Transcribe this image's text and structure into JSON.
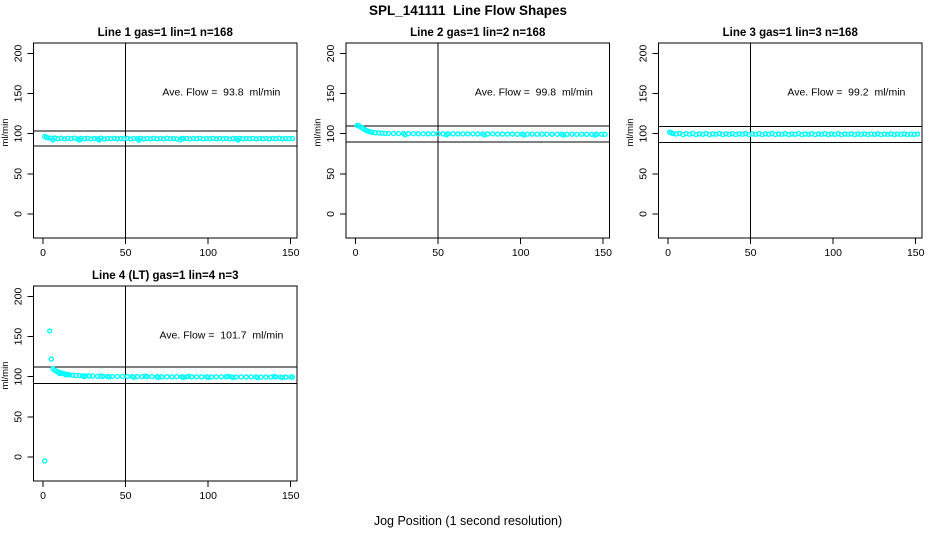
{
  "page": {
    "title": "SPL_141111  Line Flow Shapes",
    "xlabel": "Jog Position (1 second resolution)"
  },
  "colors": {
    "marker": "#00ffff",
    "axis": "#000000",
    "text": "#000000",
    "background": "#ffffff"
  },
  "chart_data": [
    {
      "type": "scatter",
      "title": "Line 1 gas=1 lin=1 n=168",
      "annotation": "Ave. Flow =  93.8  ml/min",
      "ave_flow_ml_min": 93.8,
      "ylabel": "ml/min",
      "xticks": [
        0,
        50,
        100,
        150
      ],
      "yticks": [
        0,
        50,
        100,
        150,
        200
      ],
      "xlim": [
        -5.8,
        153.8
      ],
      "ylim": [
        -30,
        213
      ],
      "vline": 50,
      "hlines": [
        103.2,
        84.4
      ],
      "annotation_pos": [
        108,
        152
      ],
      "points": [
        [
          1,
          96.5
        ],
        [
          2,
          95.6
        ],
        [
          3,
          94.9
        ],
        [
          5,
          94.3
        ],
        [
          6,
          92.3
        ],
        [
          7,
          94.6
        ],
        [
          9,
          93.8
        ],
        [
          11,
          94.4
        ],
        [
          13,
          93.6
        ],
        [
          15,
          94.2
        ],
        [
          17,
          93.9
        ],
        [
          19,
          94.5
        ],
        [
          21,
          93.4
        ],
        [
          22,
          92.1
        ],
        [
          23,
          94.1
        ],
        [
          25,
          93.7
        ],
        [
          27,
          94.3
        ],
        [
          29,
          93.5
        ],
        [
          31,
          94.0
        ],
        [
          33,
          93.8
        ],
        [
          34,
          92.3
        ],
        [
          35,
          94.4
        ],
        [
          37,
          93.3
        ],
        [
          39,
          94.1
        ],
        [
          41,
          93.7
        ],
        [
          43,
          94.2
        ],
        [
          45,
          93.6
        ],
        [
          47,
          94.0
        ],
        [
          49,
          93.8
        ],
        [
          51,
          94.3
        ],
        [
          53,
          93.5
        ],
        [
          55,
          94.1
        ],
        [
          57,
          93.7
        ],
        [
          58,
          92.1
        ],
        [
          59,
          94.2
        ],
        [
          61,
          93.4
        ],
        [
          63,
          94.0
        ],
        [
          65,
          93.8
        ],
        [
          67,
          94.3
        ],
        [
          69,
          93.6
        ],
        [
          71,
          94.1
        ],
        [
          73,
          93.5
        ],
        [
          75,
          94.2
        ],
        [
          77,
          93.8
        ],
        [
          79,
          94.0
        ],
        [
          81,
          93.5
        ],
        [
          83,
          92.2
        ],
        [
          84,
          94.2
        ],
        [
          85,
          93.7
        ],
        [
          87,
          94.1
        ],
        [
          89,
          93.5
        ],
        [
          91,
          94.0
        ],
        [
          93,
          93.8
        ],
        [
          95,
          94.2
        ],
        [
          97,
          93.5
        ],
        [
          99,
          94.0
        ],
        [
          101,
          93.7
        ],
        [
          103,
          94.2
        ],
        [
          105,
          93.6
        ],
        [
          107,
          94.0
        ],
        [
          109,
          93.8
        ],
        [
          111,
          94.1
        ],
        [
          113,
          93.5
        ],
        [
          115,
          94.0
        ],
        [
          117,
          93.7
        ],
        [
          118,
          92.1
        ],
        [
          119,
          94.2
        ],
        [
          121,
          93.6
        ],
        [
          123,
          94.0
        ],
        [
          125,
          93.8
        ],
        [
          127,
          94.1
        ],
        [
          129,
          93.5
        ],
        [
          131,
          94.0
        ],
        [
          133,
          93.7
        ],
        [
          135,
          94.1
        ],
        [
          137,
          93.6
        ],
        [
          139,
          94.0
        ],
        [
          141,
          93.8
        ],
        [
          143,
          94.2
        ],
        [
          145,
          93.6
        ],
        [
          147,
          94.0
        ],
        [
          149,
          93.8
        ],
        [
          151,
          94.0
        ]
      ]
    },
    {
      "type": "scatter",
      "title": "Line 2 gas=1 lin=2 n=168",
      "annotation": "Ave. Flow =  99.8  ml/min",
      "ave_flow_ml_min": 99.8,
      "ylabel": "ml/min",
      "xticks": [
        0,
        50,
        100,
        150
      ],
      "yticks": [
        0,
        50,
        100,
        150,
        200
      ],
      "xlim": [
        -5.8,
        153.8
      ],
      "ylim": [
        -30,
        213
      ],
      "vline": 50,
      "hlines": [
        109.8,
        89.8
      ],
      "annotation_pos": [
        108,
        152
      ],
      "points": [
        [
          1,
          110.3
        ],
        [
          2,
          109.8
        ],
        [
          3,
          108.6
        ],
        [
          4,
          107.2
        ],
        [
          5,
          105.8
        ],
        [
          6,
          104.6
        ],
        [
          7,
          103.6
        ],
        [
          8,
          102.8
        ],
        [
          9,
          102.2
        ],
        [
          10,
          101.7
        ],
        [
          12,
          101.2
        ],
        [
          14,
          100.8
        ],
        [
          16,
          100.6
        ],
        [
          18,
          100.4
        ],
        [
          20,
          100.3
        ],
        [
          23,
          100.2
        ],
        [
          26,
          100.1
        ],
        [
          29,
          100.2
        ],
        [
          30,
          98.6
        ],
        [
          32,
          100.0
        ],
        [
          35,
          100.1
        ],
        [
          38,
          99.9
        ],
        [
          41,
          100.0
        ],
        [
          44,
          99.9
        ],
        [
          47,
          100.0
        ],
        [
          50,
          99.8
        ],
        [
          53,
          99.9
        ],
        [
          55,
          98.5
        ],
        [
          56,
          99.8
        ],
        [
          59,
          99.9
        ],
        [
          62,
          99.7
        ],
        [
          65,
          99.8
        ],
        [
          68,
          99.7
        ],
        [
          71,
          99.8
        ],
        [
          74,
          99.6
        ],
        [
          77,
          99.7
        ],
        [
          78,
          98.4
        ],
        [
          80,
          99.6
        ],
        [
          83,
          99.7
        ],
        [
          86,
          99.5
        ],
        [
          89,
          99.6
        ],
        [
          92,
          99.5
        ],
        [
          95,
          99.6
        ],
        [
          98,
          99.4
        ],
        [
          101,
          99.5
        ],
        [
          102,
          98.3
        ],
        [
          104,
          99.4
        ],
        [
          107,
          99.5
        ],
        [
          110,
          99.3
        ],
        [
          113,
          99.4
        ],
        [
          116,
          99.3
        ],
        [
          119,
          99.4
        ],
        [
          122,
          99.3
        ],
        [
          125,
          99.3
        ],
        [
          126,
          98.2
        ],
        [
          128,
          99.2
        ],
        [
          131,
          99.3
        ],
        [
          134,
          99.2
        ],
        [
          137,
          99.3
        ],
        [
          140,
          99.2
        ],
        [
          143,
          99.2
        ],
        [
          145,
          98.2
        ],
        [
          146,
          99.3
        ],
        [
          149,
          99.2
        ],
        [
          151,
          99.2
        ]
      ]
    },
    {
      "type": "scatter",
      "title": "Line 3 gas=1 lin=3 n=168",
      "annotation": "Ave. Flow =  99.2  ml/min",
      "ave_flow_ml_min": 99.2,
      "ylabel": "ml/min",
      "xticks": [
        0,
        50,
        100,
        150
      ],
      "yticks": [
        0,
        50,
        100,
        150,
        200
      ],
      "xlim": [
        -5.8,
        153.8
      ],
      "ylim": [
        -30,
        213
      ],
      "vline": 50,
      "hlines": [
        109.1,
        89.3
      ],
      "annotation_pos": [
        108,
        152
      ],
      "points": [
        [
          1,
          101.8
        ],
        [
          2,
          100.9
        ],
        [
          3,
          100.2
        ],
        [
          5,
          99.6
        ],
        [
          7,
          100.3
        ],
        [
          9,
          98.9
        ],
        [
          11,
          100.1
        ],
        [
          13,
          99.3
        ],
        [
          15,
          100.4
        ],
        [
          17,
          98.8
        ],
        [
          19,
          99.9
        ],
        [
          21,
          99.2
        ],
        [
          23,
          100.2
        ],
        [
          25,
          98.9
        ],
        [
          27,
          99.8
        ],
        [
          29,
          99.3
        ],
        [
          31,
          100.3
        ],
        [
          33,
          98.8
        ],
        [
          35,
          99.7
        ],
        [
          37,
          99.2
        ],
        [
          39,
          100.1
        ],
        [
          41,
          98.9
        ],
        [
          43,
          99.8
        ],
        [
          45,
          99.3
        ],
        [
          47,
          100.2
        ],
        [
          49,
          98.8
        ],
        [
          51,
          99.7
        ],
        [
          53,
          99.2
        ],
        [
          55,
          100.1
        ],
        [
          57,
          98.9
        ],
        [
          59,
          99.8
        ],
        [
          61,
          99.3
        ],
        [
          63,
          100.2
        ],
        [
          65,
          98.8
        ],
        [
          67,
          99.6
        ],
        [
          69,
          99.2
        ],
        [
          71,
          100.0
        ],
        [
          73,
          98.9
        ],
        [
          75,
          99.7
        ],
        [
          77,
          99.2
        ],
        [
          79,
          100.1
        ],
        [
          81,
          98.8
        ],
        [
          83,
          99.6
        ],
        [
          85,
          99.2
        ],
        [
          87,
          100.0
        ],
        [
          89,
          98.9
        ],
        [
          91,
          99.7
        ],
        [
          93,
          99.2
        ],
        [
          95,
          100.0
        ],
        [
          97,
          98.8
        ],
        [
          99,
          99.6
        ],
        [
          101,
          99.2
        ],
        [
          103,
          100.0
        ],
        [
          105,
          98.9
        ],
        [
          107,
          99.6
        ],
        [
          109,
          99.2
        ],
        [
          111,
          99.9
        ],
        [
          113,
          98.8
        ],
        [
          115,
          99.6
        ],
        [
          117,
          99.1
        ],
        [
          119,
          99.9
        ],
        [
          121,
          98.9
        ],
        [
          123,
          99.5
        ],
        [
          125,
          99.2
        ],
        [
          127,
          99.9
        ],
        [
          129,
          98.8
        ],
        [
          131,
          99.5
        ],
        [
          133,
          99.1
        ],
        [
          135,
          99.8
        ],
        [
          137,
          98.9
        ],
        [
          139,
          99.5
        ],
        [
          141,
          99.1
        ],
        [
          143,
          99.8
        ],
        [
          145,
          98.8
        ],
        [
          147,
          99.4
        ],
        [
          149,
          99.1
        ],
        [
          151,
          99.5
        ]
      ]
    },
    {
      "type": "scatter",
      "title": "Line 4 (LT) gas=1 lin=4 n=3",
      "annotation": "Ave. Flow =  101.7  ml/min",
      "ave_flow_ml_min": 101.7,
      "ylabel": "ml/min",
      "xticks": [
        0,
        50,
        100,
        150
      ],
      "yticks": [
        0,
        50,
        100,
        150,
        200
      ],
      "xlim": [
        -5.8,
        153.8
      ],
      "ylim": [
        -30,
        213
      ],
      "vline": 50,
      "hlines": [
        111.9,
        91.5
      ],
      "annotation_pos": [
        108,
        152
      ],
      "points": [
        [
          1,
          -5
        ],
        [
          4,
          157
        ],
        [
          5,
          122
        ],
        [
          6,
          110
        ],
        [
          7,
          108.2
        ],
        [
          8,
          107.0
        ],
        [
          9,
          106.0
        ],
        [
          10,
          105.2
        ],
        [
          10,
          104.0
        ],
        [
          11,
          104.5
        ],
        [
          12,
          103.9
        ],
        [
          13,
          103.4
        ],
        [
          14,
          103.0
        ],
        [
          14,
          102.2
        ],
        [
          15,
          102.6
        ],
        [
          16,
          102.3
        ],
        [
          18,
          101.9
        ],
        [
          20,
          101.6
        ],
        [
          22,
          101.3
        ],
        [
          24,
          101.1
        ],
        [
          25,
          100.2
        ],
        [
          26,
          100.9
        ],
        [
          28,
          100.8
        ],
        [
          30,
          100.7
        ],
        [
          33,
          100.5
        ],
        [
          35,
          101.0
        ],
        [
          36,
          100.4
        ],
        [
          39,
          100.4
        ],
        [
          40,
          99.7
        ],
        [
          42,
          100.3
        ],
        [
          45,
          100.2
        ],
        [
          48,
          100.3
        ],
        [
          51,
          100.2
        ],
        [
          54,
          100.1
        ],
        [
          55,
          99.4
        ],
        [
          57,
          100.2
        ],
        [
          60,
          100.1
        ],
        [
          62,
          100.6
        ],
        [
          63,
          100.0
        ],
        [
          66,
          100.1
        ],
        [
          69,
          100.0
        ],
        [
          70,
          99.3
        ],
        [
          72,
          99.9
        ],
        [
          75,
          100.0
        ],
        [
          78,
          99.9
        ],
        [
          81,
          100.0
        ],
        [
          84,
          99.9
        ],
        [
          85,
          99.2
        ],
        [
          87,
          99.8
        ],
        [
          88,
          100.4
        ],
        [
          90,
          99.9
        ],
        [
          93,
          99.8
        ],
        [
          96,
          99.9
        ],
        [
          99,
          99.8
        ],
        [
          100,
          99.1
        ],
        [
          102,
          99.7
        ],
        [
          105,
          99.8
        ],
        [
          108,
          99.7
        ],
        [
          111,
          99.8
        ],
        [
          112,
          100.3
        ],
        [
          114,
          99.7
        ],
        [
          115,
          99.0
        ],
        [
          117,
          99.6
        ],
        [
          120,
          99.7
        ],
        [
          123,
          99.6
        ],
        [
          126,
          99.7
        ],
        [
          129,
          99.6
        ],
        [
          130,
          98.9
        ],
        [
          132,
          99.5
        ],
        [
          135,
          99.6
        ],
        [
          138,
          99.5
        ],
        [
          140,
          100.2
        ],
        [
          141,
          99.6
        ],
        [
          144,
          99.5
        ],
        [
          145,
          98.9
        ],
        [
          147,
          99.6
        ],
        [
          150,
          99.5
        ],
        [
          151,
          99.6
        ]
      ]
    }
  ]
}
